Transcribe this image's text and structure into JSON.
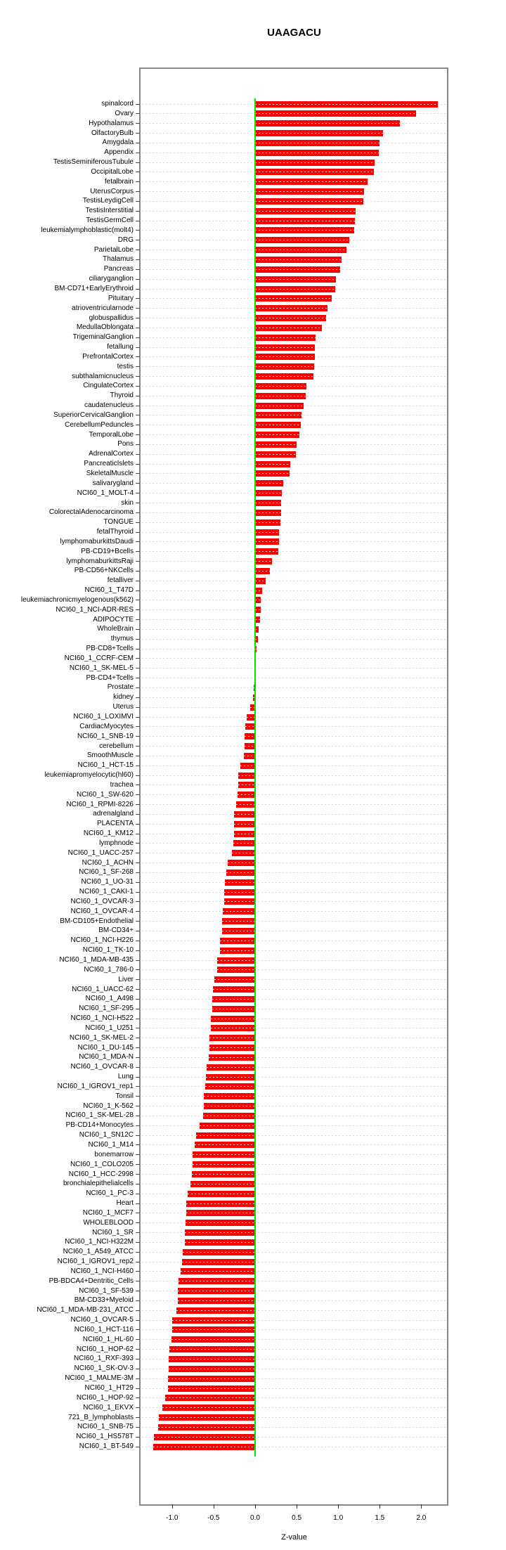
{
  "title": "UAAGACU",
  "xlabel": "Z-value",
  "axis": {
    "ticks": [
      -1.0,
      -0.5,
      0.0,
      0.5,
      1.0,
      1.5,
      2.0
    ],
    "tick_labels": [
      "-1.0",
      "-0.5",
      "0.0",
      "0.5",
      "1.0",
      "1.5",
      "2.0"
    ],
    "xlim": [
      -1.38,
      2.32
    ]
  },
  "colors": {
    "bar": "#fe0000",
    "zero_line": "#00e600",
    "grid": "#d6d6d6",
    "box_border": "#888888"
  },
  "chart_data": {
    "type": "bar",
    "orientation": "horizontal",
    "title": "UAAGACU",
    "xlabel": "Z-value",
    "xlim": [
      -1.38,
      2.32
    ],
    "grid": "dotted-row-lines",
    "legend_position": "none",
    "categories": [
      "spinalcord",
      "Ovary",
      "Hypothalamus",
      "OlfactoryBulb",
      "Amygdala",
      "Appendix",
      "TestisSeminiferousTubule",
      "OccipitalLobe",
      "fetalbrain",
      "UterusCorpus",
      "TestisLeydigCell",
      "TestisInterstitial",
      "TestisGermCell",
      "leukemialymphoblastic(molt4)",
      "DRG",
      "ParietalLobe",
      "Thalamus",
      "Pancreas",
      "ciliaryganglion",
      "BM-CD71+EarlyErythroid",
      "Pituitary",
      "atrioventricularnode",
      "globuspallidus",
      "MedullaOblongata",
      "TrigeminalGanglion",
      "fetallung",
      "PrefrontalCortex",
      "testis",
      "subthalamicnucleus",
      "CingulateCortex",
      "Thyroid",
      "caudatenucleus",
      "SuperiorCervicalGanglion",
      "CerebellumPeduncles",
      "TemporalLobe",
      "Pons",
      "AdrenalCortex",
      "PancreaticIslets",
      "SkeletalMuscle",
      "salivarygland",
      "NCI60_1_MOLT-4",
      "skin",
      "ColorectalAdenocarcinoma",
      "TONGUE",
      "fetalThyroid",
      "lymphomaburkittsDaudi",
      "PB-CD19+Bcells",
      "lymphomaburkittsRaji",
      "PB-CD56+NKCells",
      "fetalliver",
      "NCI60_1_T47D",
      "leukemiachronicmyelogenous(k562)",
      "NCI60_1_NCI-ADR-RES",
      "ADIPOCYTE",
      "WholeBrain",
      "thymus",
      "PB-CD8+Tcells",
      "NCI60_1_CCRF-CEM",
      "NCI60_1_SK-MEL-5",
      "PB-CD4+Tcells",
      "Prostate",
      "kidney",
      "Uterus",
      "NCI60_1_LOXIMVI",
      "CardiacMyocytes",
      "NCI60_1_SNB-19",
      "cerebellum",
      "SmoothMuscle",
      "NCI60_1_HCT-15",
      "leukemiapromyelocytic(hl60)",
      "trachea",
      "NCI60_1_SW-620",
      "NCI60_1_RPMI-8226",
      "adrenalgland",
      "PLACENTA",
      "NCI60_1_KM12",
      "lymphnode",
      "NCI60_1_UACC-257",
      "NCI60_1_ACHN",
      "NCI60_1_SF-268",
      "NCI60_1_UO-31",
      "NCI60_1_CAKI-1",
      "NCI60_1_OVCAR-3",
      "NCI60_1_OVCAR-4",
      "BM-CD105+Endothelial",
      "BM-CD34+",
      "NCI60_1_NCI-H226",
      "NCI60_1_TK-10",
      "NCI60_1_MDA-MB-435",
      "NCI60_1_786-0",
      "Liver",
      "NCI60_1_UACC-62",
      "NCI60_1_A498",
      "NCI60_1_SF-295",
      "NCI60_1_NCI-H522",
      "NCI60_1_U251",
      "NCI60_1_SK-MEL-2",
      "NCI60_1_DU-145",
      "NCI60_1_MDA-N",
      "NCI60_1_OVCAR-8",
      "Lung",
      "NCI60_1_IGROV1_rep1",
      "Tonsil",
      "NCI60_1_K-562",
      "NCI60_1_SK-MEL-28",
      "PB-CD14+Monocytes",
      "NCI60_1_SN12C",
      "NCI60_1_M14",
      "bonemarrow",
      "NCI60_1_COLO205",
      "NCI60_1_HCC-2998",
      "bronchialepithelialcells",
      "NCI60_1_PC-3",
      "Heart",
      "NCI60_1_MCF7",
      "WHOLEBLOOD",
      "NCI60_1_SR",
      "NCI60_1_NCI-H322M",
      "NCI60_1_A549_ATCC",
      "NCI60_1_IGROV1_rep2",
      "NCI60_1_NCI-H460",
      "PB-BDCA4+Dentritic_Cells",
      "NCI60_1_SF-539",
      "BM-CD33+Myeloid",
      "NCI60_1_MDA-MB-231_ATCC",
      "NCI60_1_OVCAR-5",
      "NCI60_1_HCT-116",
      "NCI60_1_HL-60",
      "NCI60_1_HOP-62",
      "NCI60_1_RXF-393",
      "NCI60_1_SK-OV-3",
      "NCI60_1_MALME-3M",
      "NCI60_1_HT29",
      "NCI60_1_HOP-92",
      "NCI60_1_EKVX",
      "721_B_lymphoblasts",
      "NCI60_1_SNB-75",
      "NCI60_1_HS578T",
      "NCI60_1_BT-549"
    ],
    "values": [
      2.2,
      1.94,
      1.74,
      1.54,
      1.5,
      1.49,
      1.44,
      1.43,
      1.35,
      1.31,
      1.3,
      1.21,
      1.2,
      1.19,
      1.13,
      1.1,
      1.04,
      1.02,
      0.97,
      0.96,
      0.92,
      0.87,
      0.85,
      0.8,
      0.73,
      0.72,
      0.72,
      0.71,
      0.7,
      0.62,
      0.61,
      0.58,
      0.56,
      0.55,
      0.53,
      0.5,
      0.49,
      0.42,
      0.41,
      0.34,
      0.32,
      0.31,
      0.31,
      0.3,
      0.29,
      0.29,
      0.28,
      0.2,
      0.18,
      0.13,
      0.08,
      0.07,
      0.07,
      0.06,
      0.04,
      0.03,
      0.02,
      0.01,
      0.004,
      0.002,
      -0.02,
      -0.03,
      -0.06,
      -0.1,
      -0.12,
      -0.13,
      -0.13,
      -0.14,
      -0.18,
      -0.2,
      -0.2,
      -0.21,
      -0.23,
      -0.25,
      -0.25,
      -0.25,
      -0.26,
      -0.28,
      -0.33,
      -0.35,
      -0.36,
      -0.37,
      -0.37,
      -0.39,
      -0.4,
      -0.4,
      -0.42,
      -0.42,
      -0.46,
      -0.46,
      -0.49,
      -0.51,
      -0.52,
      -0.52,
      -0.53,
      -0.53,
      -0.55,
      -0.55,
      -0.56,
      -0.58,
      -0.59,
      -0.6,
      -0.62,
      -0.62,
      -0.63,
      -0.67,
      -0.71,
      -0.73,
      -0.75,
      -0.75,
      -0.76,
      -0.78,
      -0.81,
      -0.83,
      -0.83,
      -0.84,
      -0.85,
      -0.85,
      -0.87,
      -0.88,
      -0.9,
      -0.92,
      -0.93,
      -0.93,
      -0.95,
      -1.0,
      -1.0,
      -1.01,
      -1.03,
      -1.04,
      -1.04,
      -1.05,
      -1.05,
      -1.08,
      -1.12,
      -1.16,
      -1.17,
      -1.22,
      -1.23
    ]
  }
}
